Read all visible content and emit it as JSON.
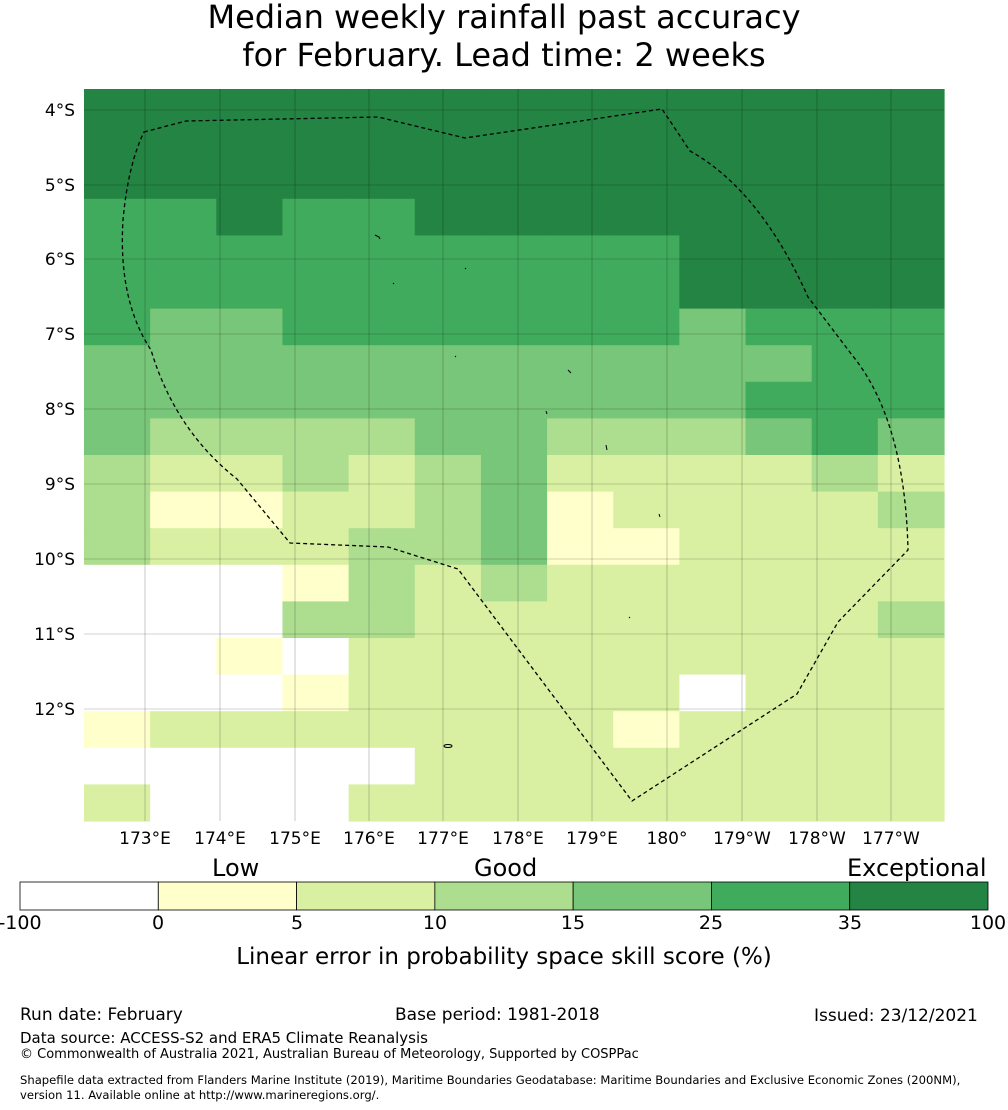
{
  "title": {
    "line1": "Median weekly rainfall past accuracy",
    "line2": "for February. Lead time: 2 weeks"
  },
  "map": {
    "lat_labels": [
      "4°S",
      "5°S",
      "6°S",
      "7°S",
      "8°S",
      "9°S",
      "10°S",
      "11°S",
      "12°S"
    ],
    "lon_labels": [
      "173°E",
      "174°E",
      "175°E",
      "176°E",
      "177°E",
      "178°E",
      "179°E",
      "180°",
      "179°W",
      "178°W",
      "177°W"
    ],
    "grid_rows": [
      "6666666666666",
      "6666666666666",
      "6666666666666",
      "5565566666666",
      "5555555556666",
      "5555555556666",
      "5445555554555",
      "4444444444455",
      "4444444444555",
      "4333344333454",
      "3223234222232",
      "3112234122223",
      "3222334112222",
      "0001323222222",
      "0003322222223",
      "0010222222222",
      "0001222220222",
      "1222222212222",
      "0000022222222",
      "2000222222222"
    ],
    "grid_note_bottom": "partial bottom band rendered from same data"
  },
  "colorbar": {
    "category_labels": [
      "Low",
      "Good",
      "Exceptional"
    ],
    "ticks": [
      "-100",
      "0",
      "5",
      "10",
      "15",
      "25",
      "35",
      "100"
    ],
    "colors": [
      "#ffffff",
      "#ffffcc",
      "#d9f0a3",
      "#addd8e",
      "#78c679",
      "#41ab5d",
      "#238443"
    ],
    "axis_label": "Linear error in probability space skill score (%)"
  },
  "footer": {
    "run_date": "Run date: February",
    "base_period": "Base period: 1981-2018",
    "issued": "Issued: 23/12/2021",
    "data_source": "Data source: ACCESS-S2 and ERA5 Climate Reanalysis",
    "copyright": "© Commonwealth of Australia 2021, Australian Bureau of Meteorology, Supported by COSPPac",
    "shapefile_1": "Shapefile data extracted from Flanders Marine Institute (2019), Maritime Boundaries Geodatabase: Maritime Boundaries and Exclusive Economic Zones (200NM),",
    "shapefile_2": "version 11. Available online at http://www.marineregions.org/."
  }
}
